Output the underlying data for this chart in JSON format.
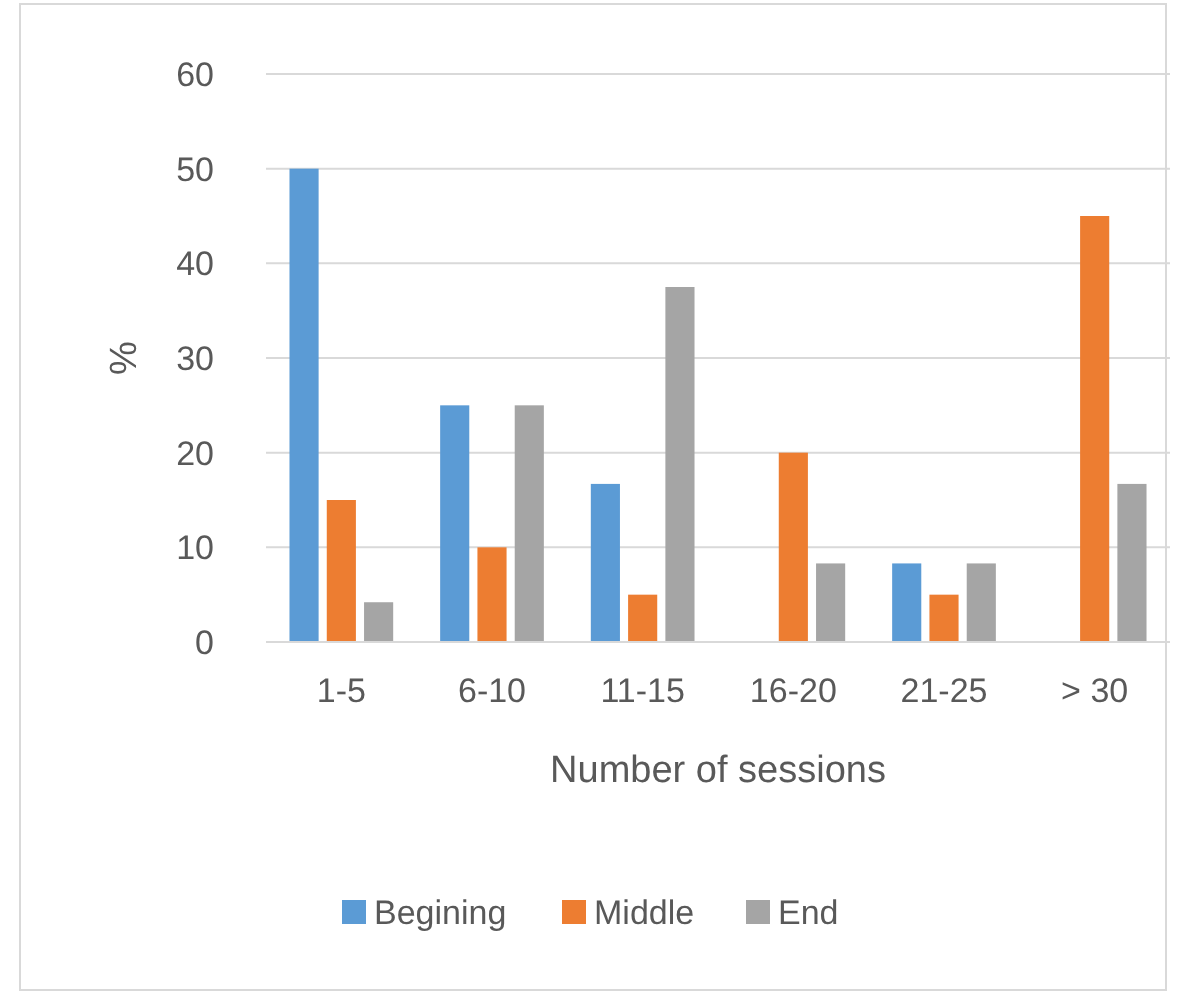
{
  "chart_data": {
    "type": "bar",
    "xlabel": "Number of sessions",
    "ylabel": "%",
    "categories": [
      "1-5",
      "6-10",
      "11-15",
      "16-20",
      "21-25",
      "> 30"
    ],
    "series": [
      {
        "name": "Begining",
        "color": "#5b9bd5",
        "values": [
          50,
          25,
          16.7,
          0,
          8.3,
          0
        ]
      },
      {
        "name": "Middle",
        "color": "#ed7d31",
        "values": [
          15,
          10,
          5,
          20,
          5,
          45
        ]
      },
      {
        "name": "End",
        "color": "#a5a5a5",
        "values": [
          4.2,
          25,
          37.5,
          8.3,
          8.3,
          16.7
        ]
      }
    ],
    "ylim": [
      0,
      60
    ],
    "yticks": [
      0,
      10,
      20,
      30,
      40,
      50,
      60
    ],
    "grid": "y",
    "legend": "bottom"
  }
}
